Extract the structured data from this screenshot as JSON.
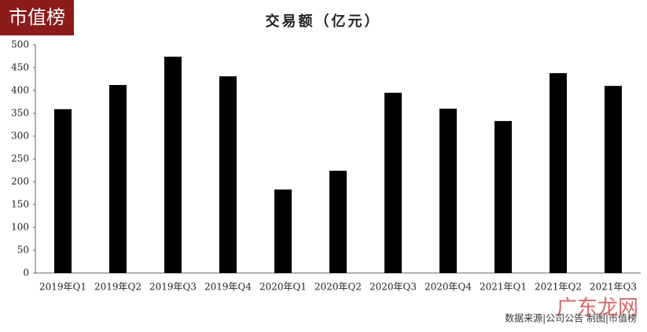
{
  "logo": "市值榜",
  "source": "数据来源|公司公告   制图|市值榜",
  "watermark": "广东龙网",
  "chart_data": {
    "type": "bar",
    "title": "交易额（亿元）",
    "categories": [
      "2019年Q1",
      "2019年Q2",
      "2019年Q3",
      "2019年Q4",
      "2020年Q1",
      "2020年Q2",
      "2020年Q3",
      "2020年Q4",
      "2021年Q1",
      "2021年Q2",
      "2021年Q3"
    ],
    "values": [
      359,
      412,
      474,
      431,
      183,
      224,
      395,
      360,
      333,
      438,
      410
    ],
    "color": "#000000",
    "ylim": [
      0,
      500
    ],
    "yticks": [
      0,
      50,
      100,
      150,
      200,
      250,
      300,
      350,
      400,
      450,
      500
    ],
    "grid": false
  }
}
